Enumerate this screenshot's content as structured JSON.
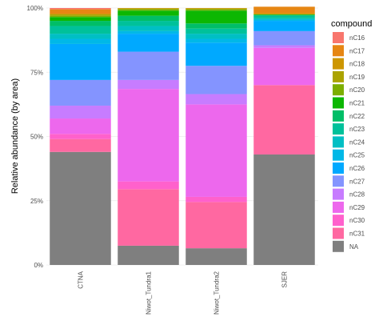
{
  "chart_data": {
    "type": "stacked_bar",
    "y_label": "Relative abundance (by area)",
    "legend_title": "compound",
    "categories": [
      "CTNA",
      "Niwot_Tundra1",
      "Niwot_Tundra2",
      "SJER"
    ],
    "ylim": [
      0,
      100
    ],
    "yticks": [
      {
        "value": 0,
        "label": "0%"
      },
      {
        "value": 25,
        "label": "25%"
      },
      {
        "value": 50,
        "label": "50%"
      },
      {
        "value": 75,
        "label": "75%"
      },
      {
        "value": 100,
        "label": "100%"
      }
    ],
    "grid": true,
    "series": [
      {
        "name": "nC16",
        "color": "#F8766D",
        "values": [
          0.5,
          0,
          0,
          0
        ]
      },
      {
        "name": "nC17",
        "color": "#E68613",
        "values": [
          1.7,
          0,
          0,
          2.5
        ]
      },
      {
        "name": "nC18",
        "color": "#CD9600",
        "values": [
          0.3,
          0.2,
          0.2,
          0.5
        ]
      },
      {
        "name": "nC19",
        "color": "#ABA300",
        "values": [
          0.5,
          0.3,
          0.3,
          0
        ]
      },
      {
        "name": "nC20",
        "color": "#7CAE00",
        "values": [
          0.5,
          0.5,
          0.5,
          0
        ]
      },
      {
        "name": "nC21",
        "color": "#0CB702",
        "values": [
          1.5,
          2,
          5,
          0.2
        ]
      },
      {
        "name": "nC22",
        "color": "#00BE67",
        "values": [
          2,
          2,
          2,
          0.3
        ]
      },
      {
        "name": "nC23",
        "color": "#00C19A",
        "values": [
          3,
          2,
          2,
          1
        ]
      },
      {
        "name": "nC24",
        "color": "#00BFC4",
        "values": [
          2,
          2,
          2,
          0.5
        ]
      },
      {
        "name": "nC25",
        "color": "#00B8E7",
        "values": [
          2,
          1,
          1.5,
          0.5
        ]
      },
      {
        "name": "nC26",
        "color": "#00A9FF",
        "values": [
          14,
          7,
          9,
          4
        ]
      },
      {
        "name": "nC27",
        "color": "#8494FF",
        "values": [
          10,
          11,
          11,
          5.5
        ]
      },
      {
        "name": "nC28",
        "color": "#C77CFF",
        "values": [
          5,
          3.5,
          4,
          1
        ]
      },
      {
        "name": "nC29",
        "color": "#ED68ED",
        "values": [
          6,
          36,
          36,
          14.5
        ]
      },
      {
        "name": "nC30",
        "color": "#FF61CC",
        "values": [
          2,
          3,
          2,
          0
        ]
      },
      {
        "name": "nC31",
        "color": "#FF68A1",
        "values": [
          5,
          22,
          18,
          27
        ]
      },
      {
        "name": "NA",
        "color": "#7F7F7F",
        "values": [
          44,
          7.5,
          6.5,
          43
        ]
      }
    ]
  }
}
